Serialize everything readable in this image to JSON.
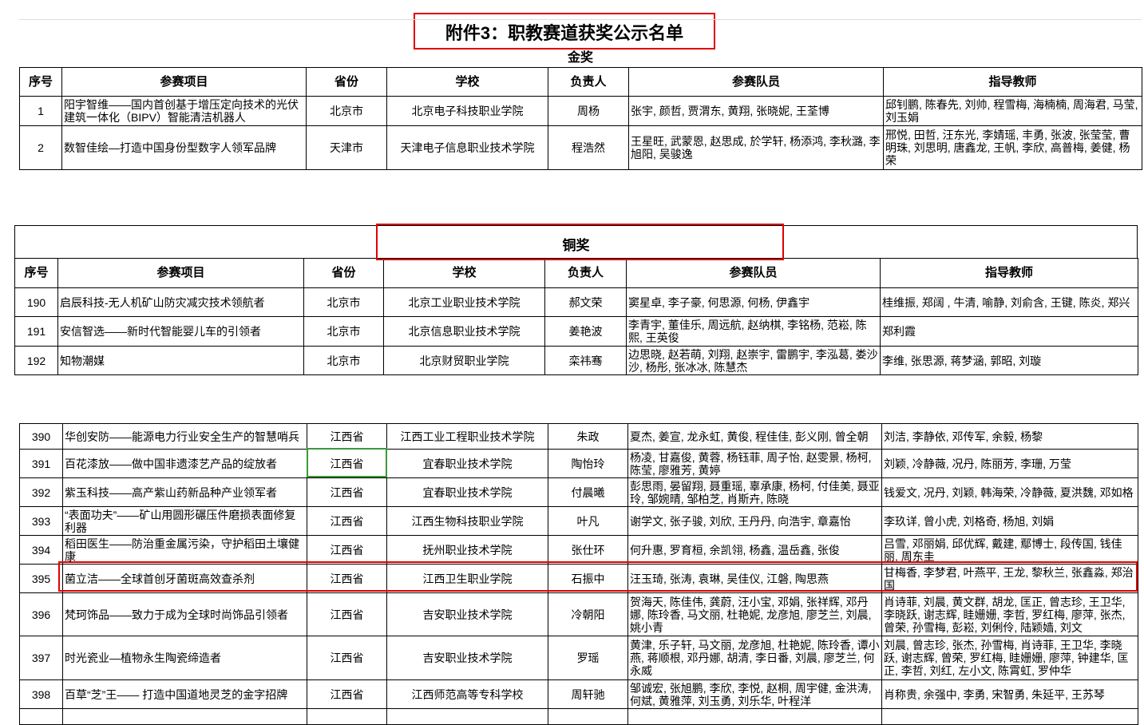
{
  "doc_title": "附件3：职教赛道获奖公示名单",
  "headers": [
    "序号",
    "参赛项目",
    "省份",
    "学校",
    "负责人",
    "参赛队员",
    "指导教师"
  ],
  "gold": {
    "label": "金奖",
    "rows": [
      [
        "1",
        "阳宇智维——国内首创基于增压定向技术的光伏建筑一体化（BIPV）智能清洁机器人",
        "北京市",
        "北京电子科技职业学院",
        "周杨",
        "张宇, 颜哲, 贾渭东, 黄翔, 张晓妮, 王荃博",
        "邱钊鹏, 陈春先, 刘帅, 程雪梅, 海楠楠, 周海君, 马莹, 刘玉娟"
      ],
      [
        "2",
        "数智佳绘—打造中国身份型数字人领军品牌",
        "天津市",
        "天津电子信息职业技术学院",
        "程浩然",
        "王星旺, 武蒙恩, 赵思成, 於学轩, 杨添鸿, 李秋潞, 李旭阳, 吴骏逸",
        "邢悦, 田哲, 汪东光, 李婧瑶, 丰勇, 张波, 张莹莹, 曹明珠, 刘思明, 唐鑫龙, 王帆, 李欣, 高普梅, 姜健, 杨荣"
      ]
    ]
  },
  "bronze": {
    "label": "铜奖",
    "rows": [
      [
        "190",
        "启辰科技-无人机矿山防灾减灾技术领航者",
        "北京市",
        "北京工业职业技术学院",
        "郝文荣",
        "窦星卓, 李子豪, 何思源, 何杨, 伊鑫宇",
        "桂维振, 郑阔 , 牛清, 喻静, 刘俞含, 王键, 陈炎, 郑兴"
      ],
      [
        "191",
        "安信智选——新时代智能婴儿车的引领者",
        "北京市",
        "北京信息职业技术学院",
        "姜艳波",
        "李青宇, 董佳乐, 周远航, 赵纳棋, 李铭杨, 范崧, 陈熙, 王英俊",
        "郑利霞"
      ],
      [
        "192",
        "知物潮媒",
        "北京市",
        "北京财贸职业学院",
        "栾祎骞",
        "边思晓, 赵若萌, 刘翔, 赵崇宇, 雷鹏宇, 李泓葛, 娄沙沙, 杨彤, 张冰冰, 陈慧杰",
        "李维, 张思源, 蒋梦涵, 郭昭, 刘璇"
      ]
    ]
  },
  "jiangxi": {
    "rows": [
      [
        "390",
        "华创安防——能源电力行业安全生产的智慧哨兵",
        "江西省",
        "江西工业工程职业技术学院",
        "朱政",
        "夏杰, 姜宣, 龙永虹, 黄俊, 程佳佳, 彭义刚, 曾全朝",
        "刘洁, 李静依, 邓传军, 余毅, 杨黎"
      ],
      [
        "391",
        "百花漆放——做中国非遗漆艺产品的绽放者",
        "江西省",
        "宜春职业技术学院",
        "陶怡玲",
        "杨凌, 甘嘉俊, 黄蓉, 杨钰菲, 周子怡, 赵雯景, 杨柯, 陈莹, 廖雅芳, 黄婷",
        "刘颖, 冷静薇, 况丹, 陈丽芳, 李珊, 万莹"
      ],
      [
        "392",
        "紫玉科技——高产紫山药新品种产业领军者",
        "江西省",
        "宜春职业技术学院",
        "付晨曦",
        "彭思雨, 晏留翔, 聂重瑶, 辜承康, 杨柯, 付佳美, 聂亚玲, 邹婉晴, 邹柏芝, 肖斯卉, 陈晓",
        "钱爱文, 况丹, 刘颖, 韩海荣, 冷静薇, 夏洪魏, 邓如格"
      ],
      [
        "393",
        "“表面功夫”——矿山用圆形碾压件磨损表面修复利器",
        "江西省",
        "江西生物科技职业学院",
        "叶凡",
        "谢学文, 张子骏, 刘欣, 王丹丹, 向浩宇, 章嘉怡",
        "李玖详, 曾小虎, 刘格奇, 杨旭, 刘娟"
      ],
      [
        "394",
        "稻田医生——防治重金属污染，守护稻田土壤健康",
        "江西省",
        "抚州职业技术学院",
        "张仕环",
        "何升惠, 罗育桓, 余凯翎, 杨鑫, 温岳鑫, 张俊",
        "吕雪, 邓丽娟, 邱优辉, 戴建, 鄢博士, 段传国, 钱佳丽, 周东圭"
      ],
      [
        "395",
        "菌立洁——全球首创牙菌斑高效查杀剂",
        "江西省",
        "江西卫生职业学院",
        "石振中",
        "汪玉琦, 张涛, 袁琳, 吴佳仪, 江磐, 陶思燕",
        "甘梅香, 李梦君, 叶燕平, 王龙, 黎秋兰, 张鑫淼, 郑治国"
      ],
      [
        "396",
        "梵珂饰品——致力于成为全球时尚饰品引领者",
        "江西省",
        "吉安职业技术学院",
        "冷朝阳",
        "贺海天, 陈佳伟, 龚蔚, 汪小宝, 邓娟, 张祥辉, 邓丹娜, 陈玲香, 马文丽, 杜艳妮, 龙彦旭, 廖芝兰, 刘晨, 姚小青",
        "肖诗菲, 刘晨, 黄文群, 胡龙, 匡正, 曾志珍, 王卫华, 李晓跃, 谢志辉, 眭姗姗, 李哲, 罗红梅, 廖萍, 张杰, 曾荣, 孙雪梅, 彭崧, 刘俐伶, 陆颖嫱, 刘文"
      ],
      [
        "397",
        "时光瓷业—植物永生陶瓷缔造者",
        "江西省",
        "吉安职业技术学院",
        "罗瑶",
        "黄津, 乐子轩, 马文丽, 龙彦旭, 杜艳妮, 陈玲香, 谭小燕, 蒋顺根, 邓丹娜, 胡清, 李日番, 刘晨, 廖芝兰, 何永威",
        "刘晨, 曾志珍, 张杰, 孙雪梅, 肖诗菲, 王卫华, 李晓跃, 谢志辉, 曾荣, 罗红梅, 眭姗姗, 廖萍, 钟建华, 匡正, 李哲, 刘红, 左小文, 陈霄虹, 罗仲华"
      ],
      [
        "398",
        "百草“芝”王—— 打造中国道地灵芝的金字招牌",
        "江西省",
        "江西师范高等专科学校",
        "周轩驰",
        "邹诚宏, 张旭鹏, 李欣, 李悦, 赵桐, 周宇健, 金洪涛, 何斌, 黄雅萍, 刘玉勇, 刘乐华, 叶程洋",
        "肖称贵, 余强中, 李勇, 宋智勇, 朱延平, 王苏琴"
      ],
      [
        "",
        "",
        "",
        "",
        "",
        "",
        ""
      ]
    ]
  },
  "colors": {
    "highlight_box": "#e00000",
    "selected_cell": "#3a9a3a"
  }
}
